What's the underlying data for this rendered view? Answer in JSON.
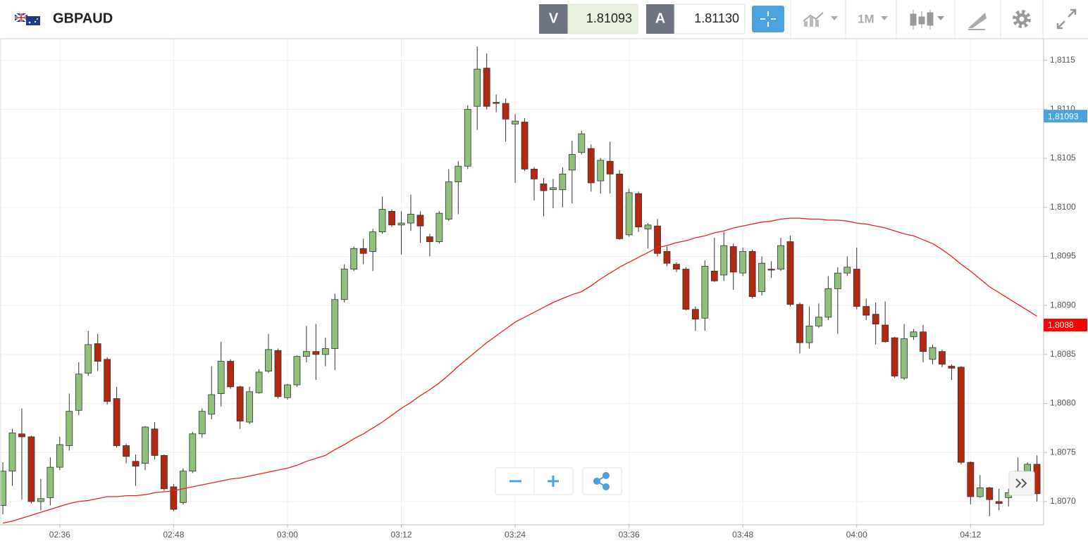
{
  "toolbar": {
    "symbol": "GBPAUD",
    "sell_label": "V",
    "sell_price": "1.81093",
    "buy_label": "A",
    "buy_price": "1.81130",
    "timeframe": "1M"
  },
  "chart_data": {
    "type": "candlestick",
    "categories": [
      null,
      null,
      null,
      null,
      null,
      null,
      "02:36",
      null,
      null,
      null,
      null,
      null,
      null,
      null,
      null,
      null,
      null,
      null,
      "02:48",
      null,
      null,
      null,
      null,
      null,
      null,
      null,
      null,
      null,
      null,
      null,
      "03:00",
      null,
      null,
      null,
      null,
      null,
      null,
      null,
      null,
      null,
      null,
      null,
      "03:12",
      null,
      null,
      null,
      null,
      null,
      null,
      null,
      null,
      null,
      null,
      null,
      "03:24",
      null,
      null,
      null,
      null,
      null,
      null,
      null,
      null,
      null,
      null,
      null,
      "03:36",
      null,
      null,
      null,
      null,
      null,
      null,
      null,
      null,
      null,
      null,
      null,
      "03:48",
      null,
      null,
      null,
      null,
      null,
      null,
      null,
      null,
      null,
      null,
      null,
      "04:00",
      null,
      null,
      null,
      null,
      null,
      null,
      null,
      null,
      null,
      null,
      null,
      "04:12",
      null,
      null,
      null,
      null,
      null,
      null,
      null
    ],
    "open": [
      1.80696,
      1.80731,
      1.80769,
      1.80766,
      1.807,
      1.80704,
      1.80735,
      1.80757,
      1.80793,
      1.80831,
      1.80861,
      1.80845,
      1.80805,
      1.80757,
      1.80741,
      1.80739,
      1.80774,
      1.80747,
      1.80715,
      1.80699,
      1.80731,
      1.80769,
      1.80789,
      1.8081,
      1.80843,
      1.80817,
      1.80781,
      1.80811,
      1.80833,
      1.80854,
      1.80806,
      1.80819,
      1.80848,
      1.80853,
      1.8085,
      1.80856,
      1.80906,
      1.80937,
      1.80958,
      1.80955,
      1.80975,
      1.80996,
      1.80982,
      1.80984,
      1.80992,
      1.8097,
      1.80965,
      1.80988,
      1.81026,
      1.81042,
      1.81103,
      1.81142,
      1.81107,
      1.81106,
      1.81085,
      1.81087,
      1.81039,
      1.81024,
      1.81018,
      1.81018,
      1.81038,
      1.81056,
      1.8106,
      1.81027,
      1.81047,
      1.81034,
      1.80972,
      1.81014,
      1.80978,
      1.80981,
      1.80955,
      1.80942,
      1.80937,
      1.80896,
      1.80887,
      1.80935,
      1.80931,
      1.8096,
      1.80933,
      1.80955,
      1.80914,
      1.80937,
      1.80937,
      1.80965,
      1.80901,
      1.80862,
      1.80879,
      1.80888,
      1.80917,
      1.80933,
      1.80937,
      1.80899,
      1.80891,
      1.8088,
      1.80867,
      1.80826,
      1.80868,
      1.80873,
      1.80845,
      1.80853,
      1.80838,
      1.80837,
      1.8074,
      1.80705,
      1.80714,
      1.807,
      1.80704,
      1.80729,
      1.80731,
      1.80738
    ],
    "high": [
      1.8074,
      1.80774,
      1.80795,
      1.80767,
      1.80723,
      1.80745,
      1.80766,
      1.8081,
      1.80842,
      1.80874,
      1.80871,
      1.80847,
      1.80817,
      1.80759,
      1.80748,
      1.80777,
      1.80781,
      1.80748,
      1.80718,
      1.80734,
      1.80771,
      1.80795,
      1.80838,
      1.80863,
      1.80845,
      1.80818,
      1.80817,
      1.80835,
      1.80871,
      1.80856,
      1.8082,
      1.80849,
      1.80879,
      1.80881,
      1.80867,
      1.80912,
      1.80942,
      1.8096,
      1.80968,
      1.80978,
      1.81011,
      1.80998,
      1.80996,
      1.81013,
      1.80996,
      1.80973,
      1.80996,
      1.81039,
      1.81047,
      1.81104,
      1.81164,
      1.81157,
      1.81115,
      1.81111,
      1.81095,
      1.81091,
      1.81041,
      1.8103,
      1.81029,
      1.81041,
      1.81068,
      1.81078,
      1.81064,
      1.8105,
      1.81067,
      1.81038,
      1.81019,
      1.81016,
      1.80984,
      1.80988,
      1.8096,
      1.80944,
      1.80939,
      1.80899,
      1.80946,
      1.80969,
      1.80975,
      1.80963,
      1.80959,
      1.80957,
      1.8095,
      1.80945,
      1.80969,
      1.80971,
      1.80903,
      1.80899,
      1.80902,
      1.8093,
      1.80939,
      1.8095,
      1.80959,
      1.80907,
      1.80903,
      1.80904,
      1.80868,
      1.80881,
      1.80876,
      1.8088,
      1.8086,
      1.80855,
      1.8084,
      1.80838,
      1.80741,
      1.80727,
      1.80715,
      1.80713,
      1.80713,
      1.80745,
      1.8074,
      1.80747
    ],
    "low": [
      1.80687,
      1.80716,
      1.80702,
      1.80698,
      1.80691,
      1.80696,
      1.80732,
      1.80752,
      1.80788,
      1.80828,
      1.80833,
      1.80799,
      1.80755,
      1.80739,
      1.80716,
      1.80732,
      1.80743,
      1.80711,
      1.8069,
      1.80697,
      1.80729,
      1.80765,
      1.80784,
      1.80797,
      1.80815,
      1.80774,
      1.80779,
      1.8081,
      1.80831,
      1.80805,
      1.80804,
      1.80817,
      1.80842,
      1.80824,
      1.80838,
      1.80834,
      1.80903,
      1.80935,
      1.80942,
      1.80935,
      1.80973,
      1.8098,
      1.80952,
      1.80976,
      1.80964,
      1.8095,
      1.80963,
      1.80986,
      1.80993,
      1.81039,
      1.81079,
      1.811,
      1.81097,
      1.81067,
      1.81025,
      1.81037,
      1.81007,
      1.80991,
      1.80999,
      1.81,
      1.81004,
      1.81054,
      1.81016,
      1.81014,
      1.81014,
      1.80967,
      1.8097,
      1.80975,
      1.80958,
      1.8095,
      1.8094,
      1.80934,
      1.80895,
      1.80874,
      1.80874,
      1.80924,
      1.80925,
      1.80916,
      1.8093,
      1.80907,
      1.8091,
      1.80928,
      1.80935,
      1.80899,
      1.80851,
      1.80856,
      1.80877,
      1.80885,
      1.80871,
      1.8093,
      1.80896,
      1.80885,
      1.8086,
      1.80862,
      1.80826,
      1.80824,
      1.80865,
      1.80842,
      1.8084,
      1.80837,
      1.80824,
      1.80738,
      1.80697,
      1.80704,
      1.80685,
      1.80691,
      1.80695,
      1.80716,
      1.80729,
      1.807
    ],
    "close": [
      1.80731,
      1.8077,
      1.80766,
      1.807,
      1.80703,
      1.80735,
      1.80758,
      1.80792,
      1.8083,
      1.8086,
      1.80843,
      1.80802,
      1.80757,
      1.80746,
      1.80736,
      1.80776,
      1.80747,
      1.80713,
      1.80692,
      1.80731,
      1.80769,
      1.80792,
      1.80809,
      1.80843,
      1.80817,
      1.80782,
      1.80812,
      1.80832,
      1.80855,
      1.80807,
      1.80819,
      1.80848,
      1.80853,
      1.8085,
      1.80856,
      1.80906,
      1.80937,
      1.80958,
      1.80953,
      1.80975,
      1.80998,
      1.80982,
      1.80984,
      1.80993,
      1.80981,
      1.80965,
      1.80994,
      1.81026,
      1.81042,
      1.811,
      1.81141,
      1.81103,
      1.81106,
      1.8109,
      1.81088,
      1.81039,
      1.81029,
      1.81017,
      1.8102,
      1.81034,
      1.81054,
      1.81075,
      1.81025,
      1.81048,
      1.81034,
      1.80968,
      1.81015,
      1.8098,
      1.80982,
      1.80953,
      1.80943,
      1.80937,
      1.80896,
      1.80886,
      1.8094,
      1.80925,
      1.80961,
      1.80934,
      1.80955,
      1.80909,
      1.80943,
      1.80936,
      1.80961,
      1.80901,
      1.80862,
      1.80879,
      1.80888,
      1.80917,
      1.80933,
      1.80939,
      1.80899,
      1.8089,
      1.80881,
      1.80863,
      1.80828,
      1.80866,
      1.80873,
      1.80853,
      1.80857,
      1.8084,
      1.80836,
      1.8074,
      1.80705,
      1.80714,
      1.80702,
      1.80698,
      1.80709,
      1.80731,
      1.80738,
      1.80708
    ],
    "up_color": "#8fc17b",
    "down_color": "#b3290f",
    "lines": [
      {
        "color": "#e8231c",
        "values": [
          1.80678,
          1.8068,
          1.80683,
          1.80686,
          1.80689,
          1.80692,
          1.80695,
          1.80698,
          1.807,
          1.80701,
          1.80703,
          1.80705,
          1.80705,
          1.80706,
          1.80706,
          1.80707,
          1.80709,
          1.8071,
          1.80711,
          1.80713,
          1.80715,
          1.80717,
          1.80719,
          1.80721,
          1.80723,
          1.80724,
          1.80726,
          1.80728,
          1.8073,
          1.80732,
          1.80734,
          1.80737,
          1.80741,
          1.80744,
          1.80747,
          1.80753,
          1.80758,
          1.80764,
          1.80769,
          1.80775,
          1.80781,
          1.80788,
          1.80795,
          1.80801,
          1.80808,
          1.80814,
          1.80821,
          1.80829,
          1.80838,
          1.80846,
          1.80854,
          1.80862,
          1.80869,
          1.80876,
          1.80883,
          1.80888,
          1.80893,
          1.80898,
          1.80903,
          1.80907,
          1.80911,
          1.80914,
          1.8092,
          1.80927,
          1.80933,
          1.80939,
          1.80944,
          1.80949,
          1.80954,
          1.80959,
          1.80961,
          1.80964,
          1.80966,
          1.80969,
          1.80971,
          1.80974,
          1.80976,
          1.80979,
          1.80981,
          1.80983,
          1.80985,
          1.80986,
          1.80988,
          1.80989,
          1.80989,
          1.80988,
          1.80988,
          1.80987,
          1.80987,
          1.80986,
          1.80984,
          1.80983,
          1.80981,
          1.80979,
          1.80976,
          1.80973,
          1.80971,
          1.80967,
          1.80963,
          1.80957,
          1.8095,
          1.80942,
          1.80935,
          1.80927,
          1.80919,
          1.80913,
          1.80907,
          1.80901,
          1.80895,
          1.80889
        ]
      }
    ],
    "price_markers": [
      {
        "value": 1.81093,
        "label": "1,81093",
        "color": "#4aa3df"
      },
      {
        "value": 1.8088,
        "label": "1,8088",
        "color": "#ff0000"
      }
    ],
    "ylim": [
      1.80677,
      1.81172
    ],
    "yticks": [
      {
        "value": 1.807,
        "label": "1,8070"
      },
      {
        "value": 1.8075,
        "label": "1,8075"
      },
      {
        "value": 1.808,
        "label": "1,8080"
      },
      {
        "value": 1.8085,
        "label": "1,8085"
      },
      {
        "value": 1.809,
        "label": "1,8090"
      },
      {
        "value": 1.8095,
        "label": "1,8095"
      },
      {
        "value": 1.81,
        "label": "1,8100"
      },
      {
        "value": 1.8105,
        "label": "1,8105"
      },
      {
        "value": 1.811,
        "label": "1,8110"
      },
      {
        "value": 1.8115,
        "label": "1,8115"
      }
    ],
    "grid": true
  }
}
